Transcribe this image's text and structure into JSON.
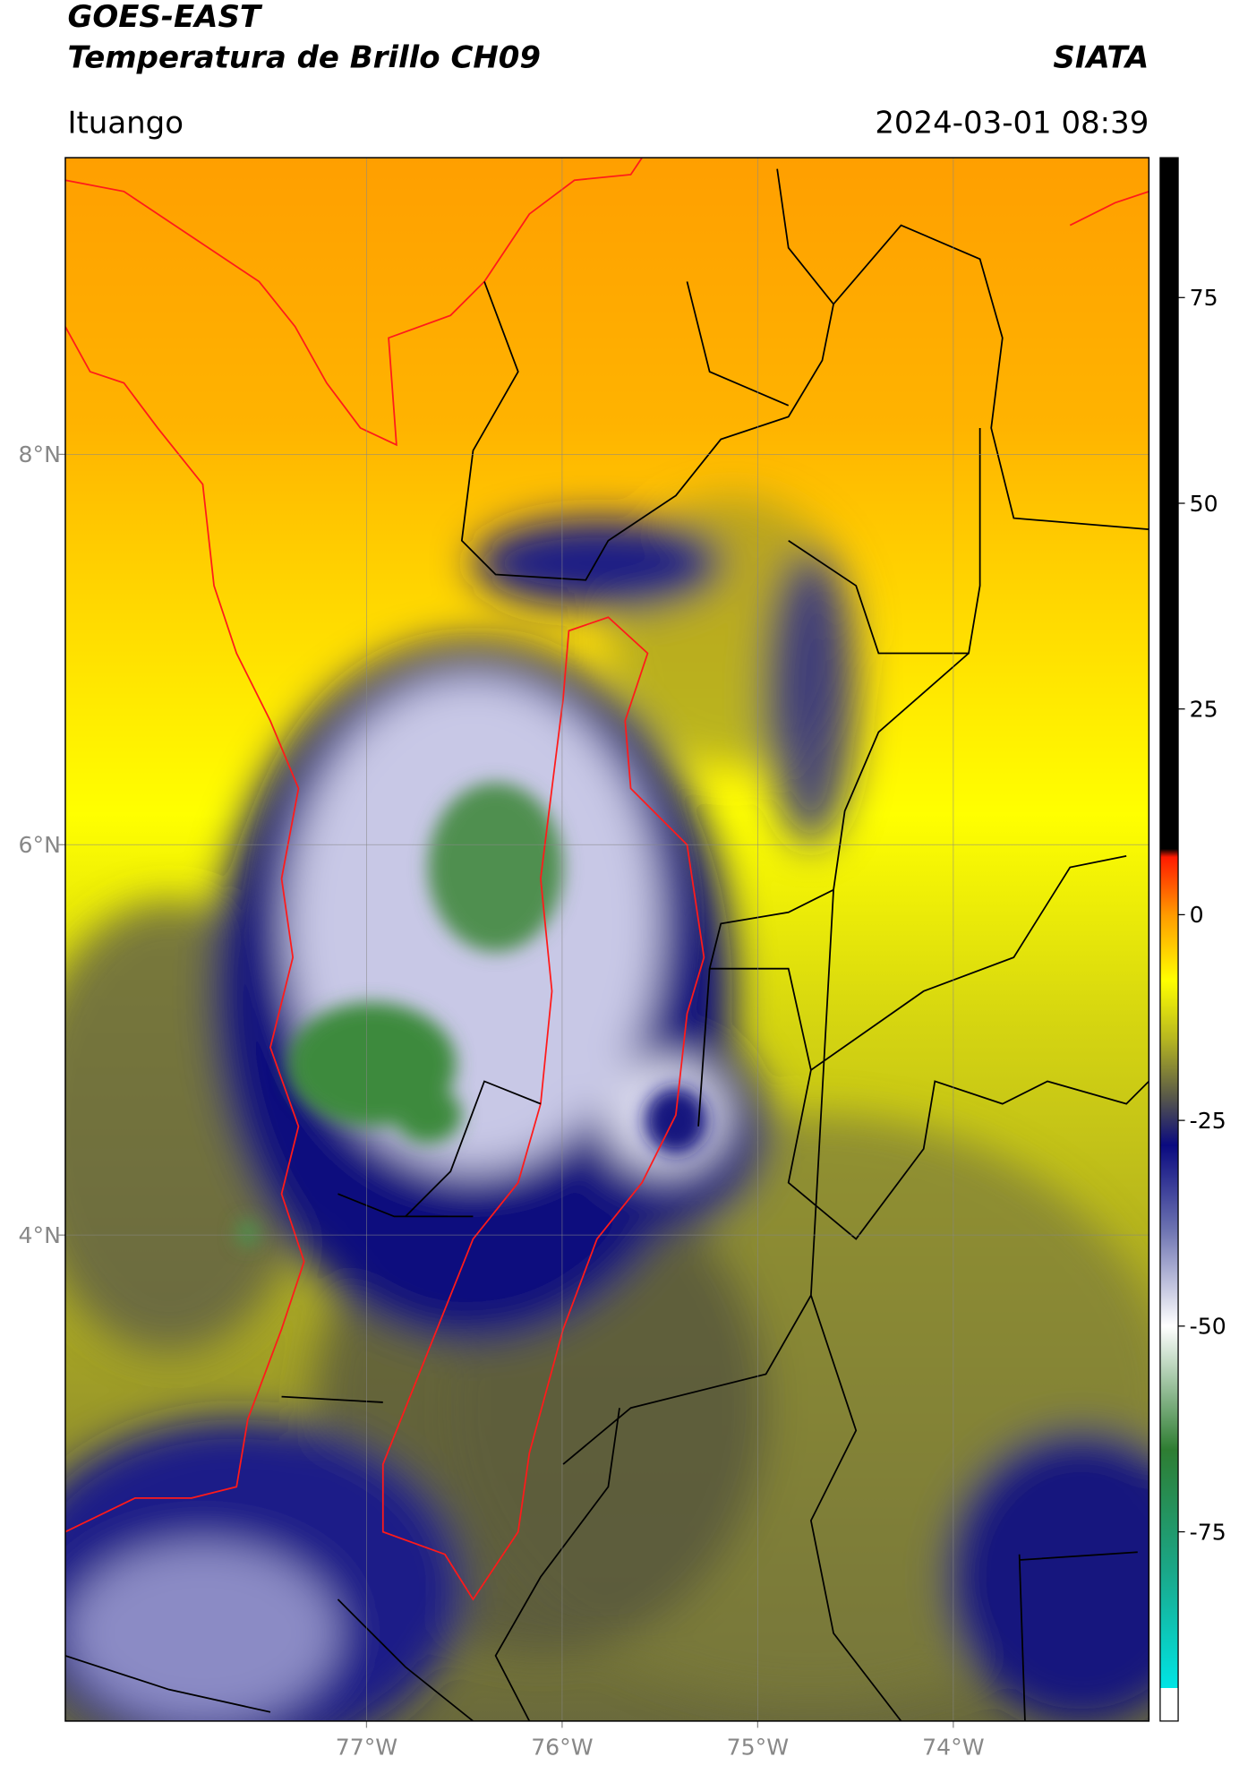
{
  "header": {
    "title": "GOES-EAST",
    "subtitle": "Temperatura de Brillo CH09",
    "source": "SIATA",
    "region": "Ituango",
    "datetime": "2024-03-01 08:39"
  },
  "map": {
    "xlim": [
      -78.54,
      -73.0
    ],
    "ylim": [
      1.51,
      9.52
    ],
    "grid": true,
    "xticks": [
      {
        "value": -77,
        "label": "77°W"
      },
      {
        "value": -76,
        "label": "76°W"
      },
      {
        "value": -75,
        "label": "75°W"
      },
      {
        "value": -74,
        "label": "74°W"
      }
    ],
    "yticks": [
      {
        "value": 4,
        "label": "4°N"
      },
      {
        "value": 6,
        "label": "6°N"
      },
      {
        "value": 8,
        "label": "8°N"
      }
    ]
  },
  "colorbar": {
    "lim": [
      -98,
      92
    ],
    "ticks": [
      -75,
      -50,
      -25,
      0,
      25,
      50,
      75
    ],
    "stops": [
      {
        "value": -98,
        "color": "#ffffff"
      },
      {
        "value": -94,
        "color": "#ffffff"
      },
      {
        "value": -94,
        "color": "#00e5e5"
      },
      {
        "value": -80,
        "color": "#1aa88a"
      },
      {
        "value": -65,
        "color": "#2e7d32"
      },
      {
        "value": -50,
        "color": "#ffffff"
      },
      {
        "value": -38,
        "color": "#6a70b0"
      },
      {
        "value": -28,
        "color": "#0a0a80"
      },
      {
        "value": -22,
        "color": "#5a5a48"
      },
      {
        "value": -15,
        "color": "#b8b820"
      },
      {
        "value": -8,
        "color": "#ffff00"
      },
      {
        "value": 0,
        "color": "#ff9a00"
      },
      {
        "value": 7,
        "color": "#ff1a00"
      },
      {
        "value": 8,
        "color": "#000000"
      },
      {
        "value": 92,
        "color": "#000000"
      }
    ]
  }
}
